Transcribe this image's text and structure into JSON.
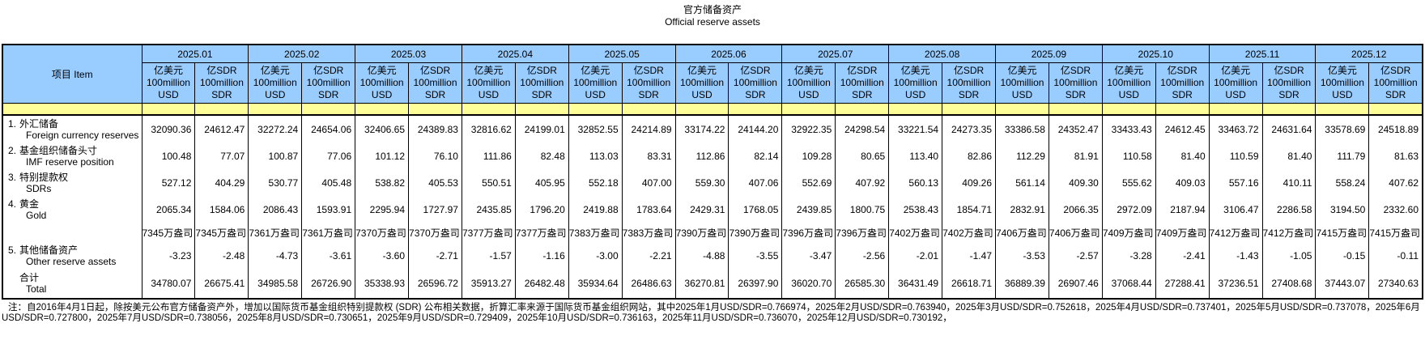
{
  "title": {
    "zh": "官方储备资产",
    "en": "Official reserve assets"
  },
  "item_header": "项目  Item",
  "months": [
    "2025.01",
    "2025.02",
    "2025.03",
    "2025.04",
    "2025.05",
    "2025.06",
    "2025.07",
    "2025.08",
    "2025.09",
    "2025.10",
    "2025.11",
    "2025.12"
  ],
  "units": {
    "usd": [
      "亿美元",
      "100million",
      "USD"
    ],
    "sdr": [
      "亿SDR",
      "100million",
      "SDR"
    ]
  },
  "colors": {
    "header_blue": "#99CCFF",
    "band_yellow": "#FFFF99",
    "border": "#000000"
  },
  "rows": [
    {
      "no": "1.",
      "zh": "外汇储备",
      "en": "Foreign currency reserves",
      "values": [
        [
          "32090.36",
          "24612.47"
        ],
        [
          "32272.24",
          "24654.06"
        ],
        [
          "32406.65",
          "24389.83"
        ],
        [
          "32816.62",
          "24199.01"
        ],
        [
          "32852.55",
          "24214.89"
        ],
        [
          "33174.22",
          "24144.20"
        ],
        [
          "32922.35",
          "24298.54"
        ],
        [
          "33221.54",
          "24273.35"
        ],
        [
          "33386.58",
          "24352.47"
        ],
        [
          "33433.43",
          "24612.45"
        ],
        [
          "33463.72",
          "24631.64"
        ],
        [
          "33578.69",
          "24518.89"
        ]
      ]
    },
    {
      "no": "2.",
      "zh": "基金组织储备头寸",
      "en": "IMF reserve position",
      "values": [
        [
          "100.48",
          "77.07"
        ],
        [
          "100.87",
          "77.06"
        ],
        [
          "101.12",
          "76.10"
        ],
        [
          "111.86",
          "82.48"
        ],
        [
          "113.03",
          "83.31"
        ],
        [
          "112.86",
          "82.14"
        ],
        [
          "109.28",
          "80.65"
        ],
        [
          "113.40",
          "82.86"
        ],
        [
          "112.29",
          "81.91"
        ],
        [
          "110.58",
          "81.40"
        ],
        [
          "110.59",
          "81.40"
        ],
        [
          "111.79",
          "81.63"
        ]
      ]
    },
    {
      "no": "3.",
      "zh": "特别提款权",
      "en": "SDRs",
      "values": [
        [
          "527.12",
          "404.29"
        ],
        [
          "530.77",
          "405.48"
        ],
        [
          "538.82",
          "405.53"
        ],
        [
          "550.51",
          "405.95"
        ],
        [
          "552.18",
          "407.00"
        ],
        [
          "559.30",
          "407.06"
        ],
        [
          "552.69",
          "407.92"
        ],
        [
          "560.13",
          "409.26"
        ],
        [
          "561.14",
          "409.30"
        ],
        [
          "555.62",
          "409.03"
        ],
        [
          "557.16",
          "410.11"
        ],
        [
          "558.24",
          "407.62"
        ]
      ]
    },
    {
      "no": "4.",
      "zh": "黄金",
      "en": "Gold",
      "values": [
        [
          "2065.34",
          "1584.06"
        ],
        [
          "2086.43",
          "1593.91"
        ],
        [
          "2295.94",
          "1727.97"
        ],
        [
          "2435.85",
          "1796.20"
        ],
        [
          "2419.88",
          "1783.64"
        ],
        [
          "2429.31",
          "1768.05"
        ],
        [
          "2439.85",
          "1800.75"
        ],
        [
          "2538.43",
          "1854.71"
        ],
        [
          "2832.91",
          "2066.35"
        ],
        [
          "2972.09",
          "2187.94"
        ],
        [
          "3106.47",
          "2286.58"
        ],
        [
          "3194.50",
          "2332.60"
        ]
      ]
    },
    {
      "type": "ounces",
      "no": "",
      "zh": "",
      "en": "",
      "values": [
        "7345万盎司",
        "7361万盎司",
        "7370万盎司",
        "7377万盎司",
        "7383万盎司",
        "7390万盎司",
        "7396万盎司",
        "7402万盎司",
        "7406万盎司",
        "7409万盎司",
        "7412万盎司",
        "7415万盎司"
      ]
    },
    {
      "no": "5.",
      "zh": "其他储备资产",
      "en": "Other reserve assets",
      "values": [
        [
          "-3.23",
          "-2.48"
        ],
        [
          "-4.73",
          "-3.61"
        ],
        [
          "-3.60",
          "-2.71"
        ],
        [
          "-1.57",
          "-1.16"
        ],
        [
          "-3.00",
          "-2.21"
        ],
        [
          "-4.88",
          "-3.55"
        ],
        [
          "-3.47",
          "-2.56"
        ],
        [
          "-2.01",
          "-1.47"
        ],
        [
          "-3.53",
          "-2.57"
        ],
        [
          "-3.28",
          "-2.41"
        ],
        [
          "-1.43",
          "-1.05"
        ],
        [
          "-0.15",
          "-0.11"
        ]
      ]
    },
    {
      "type": "total",
      "no": "",
      "zh": "合计",
      "en": "Total",
      "values": [
        [
          "34780.07",
          "26675.41"
        ],
        [
          "34985.58",
          "26726.90"
        ],
        [
          "35338.93",
          "26596.72"
        ],
        [
          "35913.27",
          "26482.48"
        ],
        [
          "35934.64",
          "26486.63"
        ],
        [
          "36270.81",
          "26397.90"
        ],
        [
          "36020.70",
          "26585.30"
        ],
        [
          "36431.49",
          "26618.71"
        ],
        [
          "36889.39",
          "26907.46"
        ],
        [
          "37068.44",
          "27288.41"
        ],
        [
          "37236.51",
          "27408.68"
        ],
        [
          "37443.07",
          "27340.63"
        ]
      ]
    }
  ],
  "note": {
    "line1": "注：自2016年4月1日起，除按美元公布官方储备资产外，增加以国际货币基金组织特别提款权 (SDR) 公布相关数据，折算汇率来源于国际货币基金组织网站，其中2025年1月USD/SDR=0.766974，2025年2月USD/SDR=0.763940，2025年3月USD/SDR=0.752618，2025年4月USD/SDR=0.737401，2025年5月USD/SDR=0.737078，2025年6月",
    "line2": "USD/SDR=0.727800，2025年7月USD/SDR=0.738056，2025年8月USD/SDR=0.730651，2025年9月USD/SDR=0.729409，2025年10月USD/SDR=0.736163，2025年11月USD/SDR=0.736070，2025年12月USD/SDR=0.730192，"
  }
}
